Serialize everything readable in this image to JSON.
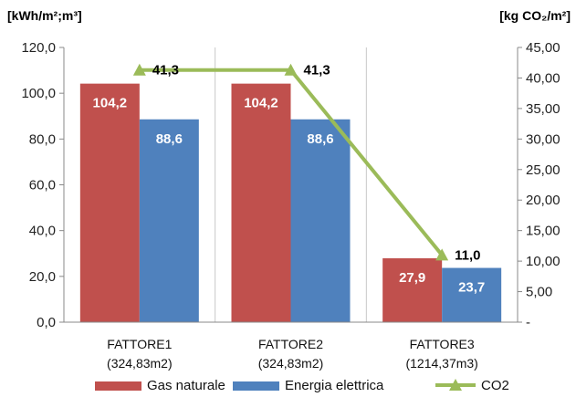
{
  "chart_data": {
    "type": "bar",
    "left_axis_unit": "[kWh/m²;m³]",
    "right_axis_unit": "[kg CO₂/m²]",
    "categories": [
      [
        "FATTORE1",
        "(324,83m2)"
      ],
      [
        "FATTORE2",
        "(324,83m2)"
      ],
      [
        "FATTORE3",
        "(1214,37m3)"
      ]
    ],
    "series": [
      {
        "name": "Gas naturale",
        "type": "bar",
        "axis": "left",
        "color": "#c0504d",
        "values": [
          104.2,
          104.2,
          27.9
        ],
        "labels": [
          "104,2",
          "104,2",
          "27,9"
        ]
      },
      {
        "name": "Energia elettrica",
        "type": "bar",
        "axis": "left",
        "color": "#4f81bd",
        "values": [
          88.6,
          88.6,
          23.7
        ],
        "labels": [
          "88,6",
          "88,6",
          "23,7"
        ]
      },
      {
        "name": "CO2",
        "type": "line",
        "axis": "right",
        "color": "#9bbb59",
        "values": [
          41.3,
          41.3,
          11.0
        ],
        "labels": [
          "41,3",
          "41,3",
          "11,0"
        ]
      }
    ],
    "left_axis": {
      "ylim": [
        0,
        120
      ],
      "ticks": [
        0,
        20,
        40,
        60,
        80,
        100,
        120
      ],
      "tick_labels": [
        "0,0",
        "20,0",
        "40,0",
        "60,0",
        "80,0",
        "100,0",
        "120,0"
      ]
    },
    "right_axis": {
      "ylim": [
        0,
        45
      ],
      "ticks": [
        0,
        5,
        10,
        15,
        20,
        25,
        30,
        35,
        40,
        45
      ],
      "tick_labels": [
        "-",
        "5,00",
        "10,00",
        "15,00",
        "20,00",
        "25,00",
        "30,00",
        "35,00",
        "40,00",
        "45,00"
      ]
    },
    "grid": true,
    "legend": "bottom"
  }
}
